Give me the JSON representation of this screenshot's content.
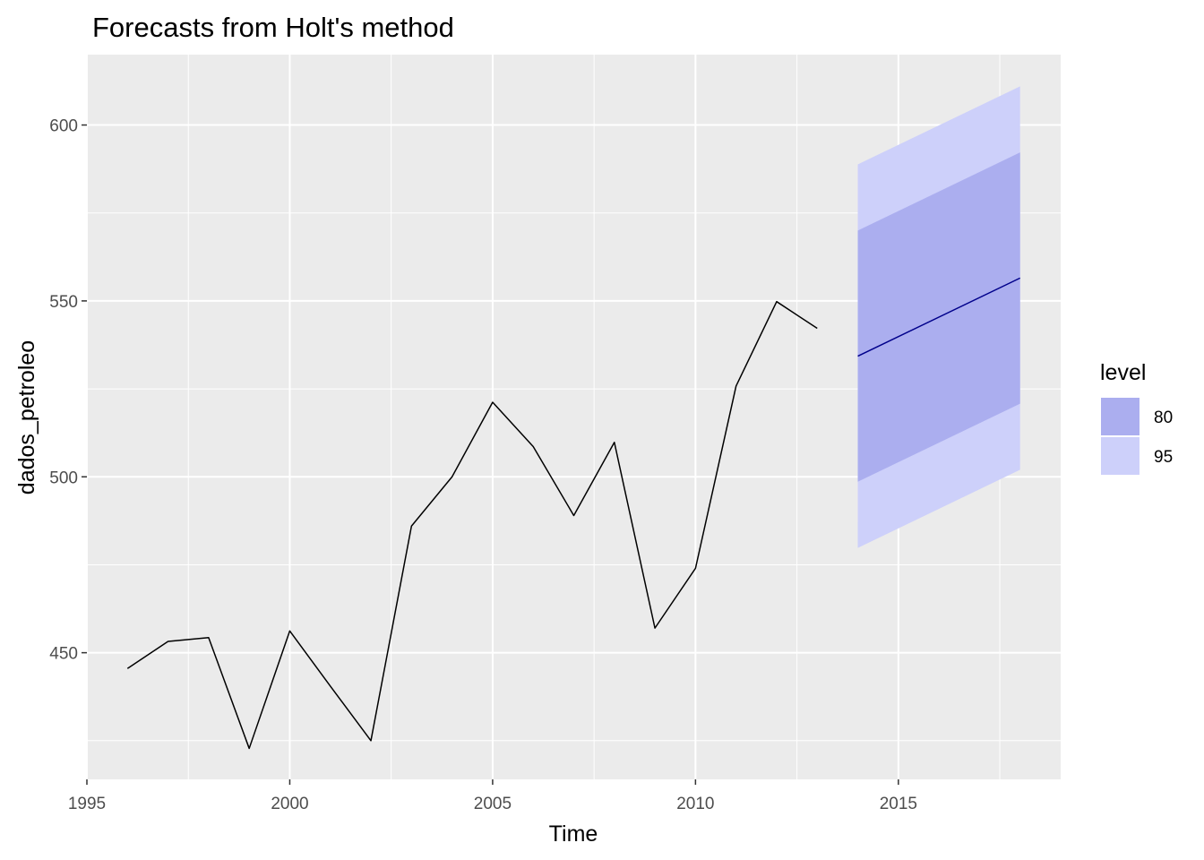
{
  "chart_data": {
    "type": "line",
    "title": "Forecasts from Holt's method",
    "xlabel": "Time",
    "ylabel": "dados_petroleo",
    "xlim": [
      1995,
      2019
    ],
    "ylim": [
      414,
      620
    ],
    "x_ticks": [
      1995,
      2000,
      2005,
      2010,
      2015
    ],
    "y_ticks": [
      450,
      500,
      550,
      600
    ],
    "grid": true,
    "observed": {
      "x": [
        1996,
        1997,
        1998,
        1999,
        2000,
        2001,
        2002,
        2003,
        2004,
        2005,
        2006,
        2007,
        2008,
        2009,
        2010,
        2011,
        2012,
        2013
      ],
      "y": [
        445.5,
        453.2,
        454.3,
        422.8,
        456.2,
        440.5,
        425.0,
        486.0,
        500.0,
        521.2,
        508.6,
        489.0,
        509.8,
        457.0,
        474.0,
        525.8,
        549.8,
        542.2
      ],
      "color": "#000000"
    },
    "forecast": {
      "x": [
        2014,
        2018
      ],
      "mean": [
        534.3,
        556.5
      ],
      "lo80": [
        498.6,
        520.8
      ],
      "hi80": [
        570.0,
        592.2
      ],
      "lo95": [
        479.8,
        502.0
      ],
      "hi95": [
        588.8,
        611.0
      ],
      "line_color": "#00008b",
      "color_80": "#abaeef",
      "color_95": "#cdd0fa"
    },
    "legend": {
      "title": "level",
      "position": "right",
      "entries": [
        {
          "label": "80",
          "color": "#abaeef"
        },
        {
          "label": "95",
          "color": "#cdd0fa"
        }
      ]
    },
    "panel_color": "#ebebeb",
    "grid_color": "#ffffff"
  }
}
